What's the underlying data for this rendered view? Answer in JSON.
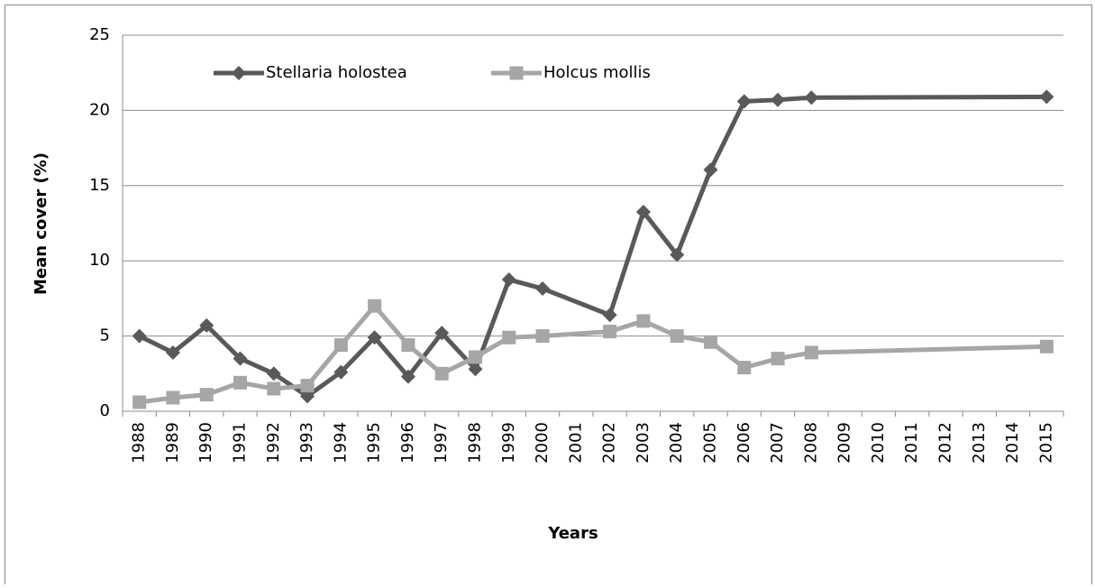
{
  "chart_data": {
    "type": "line",
    "x_label": "Years",
    "y_label": "Mean cover (%)",
    "categories": [
      "1988",
      "1989",
      "1990",
      "1991",
      "1992",
      "1993",
      "1994",
      "1995",
      "1996",
      "1997",
      "1998",
      "1999",
      "2000",
      "2001",
      "2002",
      "2003",
      "2004",
      "2005",
      "2006",
      "2007",
      "2008",
      "2009",
      "2010",
      "2011",
      "2012",
      "2013",
      "2014",
      "2015"
    ],
    "series": [
      {
        "name": "Stellaria holostea",
        "color": "#595959",
        "marker": "diamond",
        "values": [
          5.0,
          3.9,
          5.7,
          3.5,
          2.5,
          1.0,
          2.6,
          4.9,
          2.3,
          5.2,
          2.8,
          8.75,
          8.15,
          null,
          6.4,
          13.25,
          10.4,
          16.05,
          20.6,
          20.7,
          20.85,
          null,
          null,
          null,
          null,
          null,
          null,
          20.9
        ]
      },
      {
        "name": "Holcus mollis",
        "color": "#a6a6a6",
        "marker": "square",
        "values": [
          0.6,
          0.9,
          1.1,
          1.9,
          1.5,
          1.7,
          4.4,
          7.0,
          4.4,
          2.5,
          3.6,
          4.9,
          5.0,
          null,
          5.3,
          6.0,
          5.0,
          4.6,
          2.9,
          3.5,
          3.9,
          null,
          null,
          null,
          null,
          null,
          null,
          4.3
        ]
      }
    ],
    "connect_gaps": true,
    "ylim": [
      0,
      25
    ],
    "yticks": [
      0,
      5,
      10,
      15,
      20,
      25
    ],
    "grid": true,
    "legend": "top-left"
  }
}
